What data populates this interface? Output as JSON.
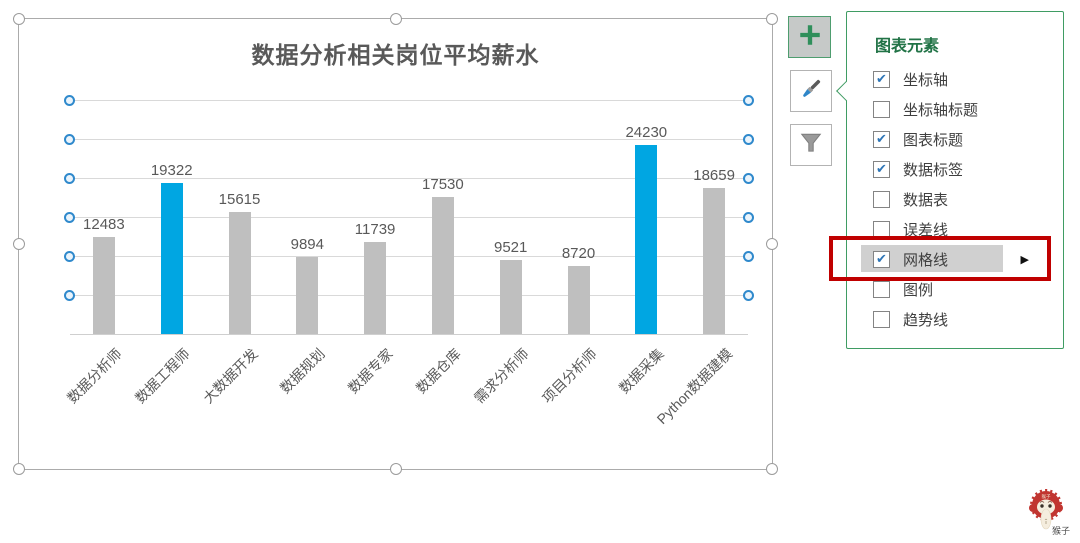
{
  "chart_data": {
    "type": "bar",
    "title": "数据分析相关岗位平均薪水",
    "categories": [
      "数据分析师",
      "数据工程师",
      "大数据开发",
      "数据规划",
      "数据专家",
      "数据仓库",
      "需求分析师",
      "项目分析师",
      "数据采集",
      "Python数据建模"
    ],
    "values": [
      12483,
      19322,
      15615,
      9894,
      11739,
      17530,
      9521,
      8720,
      24230,
      18659
    ],
    "highlighted_indices": [
      1,
      8
    ],
    "xlabel": "",
    "ylabel": "",
    "ylim": [
      0,
      30000
    ],
    "gridlines": [
      5000,
      10000,
      15000,
      20000,
      25000,
      30000
    ],
    "grid": true,
    "data_labels_visible": true,
    "yaxis_tick_labels_visible": false,
    "legend_visible": false
  },
  "colors": {
    "bar_default": "#BFBFBF",
    "bar_highlight": "#00A6E2",
    "gridline": "#D9D9D9",
    "grid_handle": "#2F89CC",
    "title_text": "#595959",
    "panel_border_green": "#3F9C63",
    "panel_header_green": "#217346",
    "check_blue": "#2E75B6",
    "annotation_red": "#C00000",
    "selection_frame": "#ABABAB"
  },
  "toolbar": {
    "buttons": [
      {
        "name": "chart-elements-button",
        "icon": "plus-icon",
        "active": true
      },
      {
        "name": "chart-styles-button",
        "icon": "paintbrush-icon",
        "active": false
      },
      {
        "name": "chart-filters-button",
        "icon": "filter-icon",
        "active": false
      }
    ]
  },
  "panel": {
    "header": "图表元素",
    "items": [
      {
        "name": "axes",
        "label": "坐标轴",
        "checked": true,
        "highlighted": false,
        "has_submenu": false
      },
      {
        "name": "axis-titles",
        "label": "坐标轴标题",
        "checked": false,
        "highlighted": false,
        "has_submenu": false
      },
      {
        "name": "chart-title",
        "label": "图表标题",
        "checked": true,
        "highlighted": false,
        "has_submenu": false
      },
      {
        "name": "data-labels",
        "label": "数据标签",
        "checked": true,
        "highlighted": false,
        "has_submenu": false
      },
      {
        "name": "data-table",
        "label": "数据表",
        "checked": false,
        "highlighted": false,
        "has_submenu": false
      },
      {
        "name": "error-bars",
        "label": "误差线",
        "checked": false,
        "highlighted": false,
        "has_submenu": false
      },
      {
        "name": "gridlines",
        "label": "网格线",
        "checked": true,
        "highlighted": true,
        "has_submenu": true
      },
      {
        "name": "legend",
        "label": "图例",
        "checked": false,
        "highlighted": false,
        "has_submenu": false
      },
      {
        "name": "trendline",
        "label": "趋势线",
        "checked": false,
        "highlighted": false,
        "has_submenu": false
      }
    ]
  },
  "watermark": {
    "label": "猴子"
  }
}
